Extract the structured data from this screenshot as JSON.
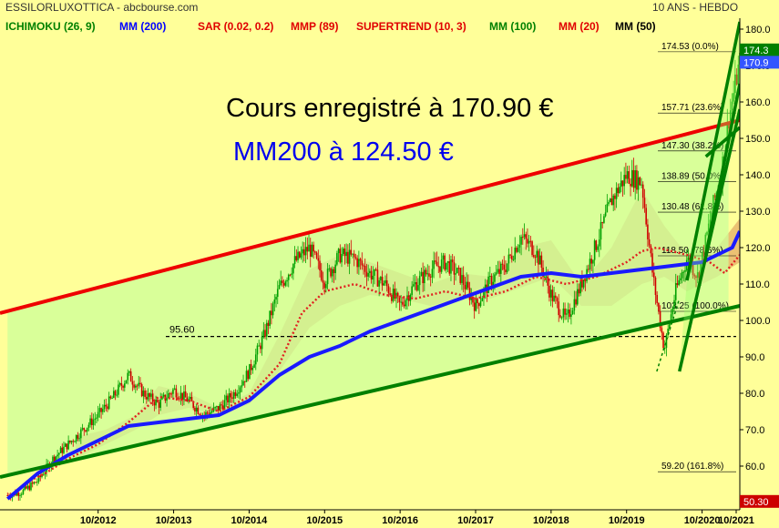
{
  "header": {
    "title": "ESSILORLUXOTTICA - abcbourse.com",
    "period": "10 ANS - HEBDO",
    "legend": [
      {
        "label": "ICHIMOKU (26, 9)",
        "color": "#008000"
      },
      {
        "label": "MM (200)",
        "color": "#0000ff"
      },
      {
        "label": "SAR (0.02, 0.2)",
        "color": "#e00000"
      },
      {
        "label": "MMP (89)",
        "color": "#e00000"
      },
      {
        "label": "SUPERTREND (10, 3)",
        "color": "#e00000"
      },
      {
        "label": "MM (100)",
        "color": "#008000"
      },
      {
        "label": "MM (20)",
        "color": "#e00000"
      },
      {
        "label": "MM (50)",
        "color": "#000000"
      }
    ]
  },
  "annotations": {
    "price_text": "Cours enregistré à 170.90 €",
    "mm200_text": "MM200 à 124.50 €",
    "support_label": "95.60"
  },
  "chart_data": {
    "type": "line",
    "ylim": [
      48,
      183
    ],
    "xlim": [
      2011.5,
      2021.3
    ],
    "yticks": [
      50,
      60,
      70,
      80,
      90,
      100,
      110,
      120,
      130,
      140,
      150,
      160,
      170,
      180
    ],
    "xticks": [
      {
        "x": 2012.8,
        "label": "10/2012"
      },
      {
        "x": 2013.8,
        "label": "10/2013"
      },
      {
        "x": 2014.8,
        "label": "10/2014"
      },
      {
        "x": 2015.8,
        "label": "10/2015"
      },
      {
        "x": 2016.8,
        "label": "10/2016"
      },
      {
        "x": 2017.8,
        "label": "10/2017"
      },
      {
        "x": 2018.8,
        "label": "10/2018"
      },
      {
        "x": 2019.8,
        "label": "10/2019"
      },
      {
        "x": 2020.8,
        "label": "10/2020"
      },
      {
        "x": 2021.8,
        "label": "10/2021"
      }
    ],
    "price_tags": [
      {
        "value": 174.3,
        "label": "174.3",
        "color": "#008000"
      },
      {
        "value": 170.9,
        "label": "170.9",
        "color": "#3355ff"
      },
      {
        "value": 50.3,
        "label": "50.30",
        "color": "#cc0000"
      }
    ],
    "fibonacci": [
      {
        "value": 174.53,
        "label": "174.53  (0.0%)"
      },
      {
        "value": 157.71,
        "label": "157.71  (23.6%)"
      },
      {
        "value": 147.3,
        "label": "147.30  (38.2%)"
      },
      {
        "value": 138.89,
        "label": "138.89  (50.0%)"
      },
      {
        "value": 130.48,
        "label": "130.48  (61.8%)"
      },
      {
        "value": 118.5,
        "label": "118.50  (78.6%)"
      },
      {
        "value": 103.25,
        "label": "103.25  (100.0%)"
      },
      {
        "value": 59.2,
        "label": "59.20  (161.8%)"
      }
    ],
    "support_level": 95.6,
    "close": [
      [
        2011.6,
        52
      ],
      [
        2011.8,
        53
      ],
      [
        2012.0,
        56
      ],
      [
        2012.2,
        62
      ],
      [
        2012.4,
        66
      ],
      [
        2012.6,
        70
      ],
      [
        2012.8,
        74
      ],
      [
        2013.0,
        79
      ],
      [
        2013.2,
        85
      ],
      [
        2013.4,
        80
      ],
      [
        2013.6,
        77
      ],
      [
        2013.8,
        81
      ],
      [
        2014.0,
        78
      ],
      [
        2014.2,
        74
      ],
      [
        2014.4,
        76
      ],
      [
        2014.6,
        80
      ],
      [
        2014.8,
        86
      ],
      [
        2015.0,
        96
      ],
      [
        2015.2,
        109
      ],
      [
        2015.4,
        116
      ],
      [
        2015.6,
        120
      ],
      [
        2015.8,
        111
      ],
      [
        2016.0,
        118
      ],
      [
        2016.2,
        117
      ],
      [
        2016.4,
        113
      ],
      [
        2016.6,
        110
      ],
      [
        2016.8,
        104
      ],
      [
        2017.0,
        110
      ],
      [
        2017.2,
        114
      ],
      [
        2017.4,
        116
      ],
      [
        2017.6,
        112
      ],
      [
        2017.8,
        104
      ],
      [
        2018.0,
        111
      ],
      [
        2018.2,
        115
      ],
      [
        2018.4,
        123
      ],
      [
        2018.6,
        119
      ],
      [
        2018.8,
        107
      ],
      [
        2019.0,
        100
      ],
      [
        2019.2,
        110
      ],
      [
        2019.4,
        121
      ],
      [
        2019.6,
        133
      ],
      [
        2019.8,
        140
      ],
      [
        2020.0,
        138
      ],
      [
        2020.15,
        112
      ],
      [
        2020.3,
        92
      ],
      [
        2020.45,
        108
      ],
      [
        2020.6,
        117
      ],
      [
        2020.75,
        112
      ],
      [
        2020.85,
        122
      ],
      [
        2020.95,
        132
      ],
      [
        2021.05,
        140
      ],
      [
        2021.15,
        155
      ],
      [
        2021.25,
        166
      ],
      [
        2021.3,
        171
      ]
    ],
    "mm200": [
      [
        2011.6,
        51
      ],
      [
        2012.0,
        58
      ],
      [
        2012.4,
        63
      ],
      [
        2012.8,
        67
      ],
      [
        2013.2,
        71
      ],
      [
        2013.6,
        72
      ],
      [
        2014.0,
        73
      ],
      [
        2014.4,
        74
      ],
      [
        2014.8,
        78
      ],
      [
        2015.2,
        85
      ],
      [
        2015.6,
        90
      ],
      [
        2016.0,
        93
      ],
      [
        2016.4,
        97
      ],
      [
        2016.8,
        100
      ],
      [
        2017.2,
        103
      ],
      [
        2017.6,
        106
      ],
      [
        2018.0,
        109
      ],
      [
        2018.4,
        112
      ],
      [
        2018.8,
        113
      ],
      [
        2019.2,
        112
      ],
      [
        2019.6,
        113
      ],
      [
        2020.0,
        114
      ],
      [
        2020.4,
        115
      ],
      [
        2020.8,
        116
      ],
      [
        2021.0,
        118
      ],
      [
        2021.2,
        120
      ],
      [
        2021.3,
        124.5
      ]
    ],
    "sar": [
      [
        2011.9,
        56
      ],
      [
        2012.1,
        58
      ],
      [
        2012.4,
        62
      ],
      [
        2012.8,
        66
      ],
      [
        2013.2,
        72
      ],
      [
        2013.6,
        79
      ],
      [
        2014.0,
        78
      ],
      [
        2014.4,
        75
      ],
      [
        2014.8,
        79
      ],
      [
        2015.2,
        88
      ],
      [
        2015.5,
        102
      ],
      [
        2015.8,
        108
      ],
      [
        2016.2,
        110
      ],
      [
        2016.6,
        107
      ],
      [
        2017.0,
        106
      ],
      [
        2017.4,
        108
      ],
      [
        2017.8,
        106
      ],
      [
        2018.2,
        108
      ],
      [
        2018.6,
        112
      ],
      [
        2019.0,
        110
      ],
      [
        2019.4,
        112
      ],
      [
        2019.8,
        116
      ],
      [
        2020.0,
        119
      ],
      [
        2020.2,
        120
      ],
      [
        2020.6,
        118
      ],
      [
        2020.9,
        116
      ],
      [
        2021.1,
        113
      ],
      [
        2021.3,
        118
      ]
    ],
    "cloud_upper": [
      [
        2012.5,
        68
      ],
      [
        2012.9,
        70
      ],
      [
        2013.3,
        74
      ],
      [
        2013.6,
        82
      ],
      [
        2014.0,
        80
      ],
      [
        2014.4,
        76
      ],
      [
        2014.8,
        80
      ],
      [
        2015.2,
        96
      ],
      [
        2015.6,
        114
      ],
      [
        2016.0,
        118
      ],
      [
        2016.4,
        116
      ],
      [
        2016.8,
        113
      ],
      [
        2017.2,
        110
      ],
      [
        2017.6,
        113
      ],
      [
        2018.0,
        112
      ],
      [
        2018.4,
        120
      ],
      [
        2018.8,
        122
      ],
      [
        2019.2,
        110
      ],
      [
        2019.6,
        120
      ],
      [
        2020.0,
        136
      ],
      [
        2020.3,
        126
      ],
      [
        2020.6,
        118
      ],
      [
        2021.0,
        120
      ],
      [
        2021.3,
        128
      ]
    ],
    "cloud_lower": [
      [
        2012.5,
        62
      ],
      [
        2012.9,
        66
      ],
      [
        2013.3,
        70
      ],
      [
        2013.6,
        74
      ],
      [
        2014.0,
        76
      ],
      [
        2014.4,
        74
      ],
      [
        2014.8,
        77
      ],
      [
        2015.2,
        86
      ],
      [
        2015.6,
        98
      ],
      [
        2016.0,
        104
      ],
      [
        2016.4,
        107
      ],
      [
        2016.8,
        106
      ],
      [
        2017.2,
        104
      ],
      [
        2017.6,
        106
      ],
      [
        2018.0,
        106
      ],
      [
        2018.4,
        109
      ],
      [
        2018.8,
        112
      ],
      [
        2019.2,
        104
      ],
      [
        2019.6,
        104
      ],
      [
        2020.0,
        110
      ],
      [
        2020.3,
        112
      ],
      [
        2020.6,
        108
      ],
      [
        2021.0,
        112
      ],
      [
        2021.3,
        116
      ]
    ],
    "channel_upper": [
      [
        2011.5,
        102
      ],
      [
        2021.3,
        155
      ]
    ],
    "channel_lower": [
      [
        2011.5,
        57
      ],
      [
        2021.3,
        104
      ]
    ],
    "recent_trend_left": [
      [
        2020.6,
        111
      ],
      [
        2021.3,
        182
      ]
    ],
    "recent_trend_right": [
      [
        2020.5,
        86
      ],
      [
        2021.3,
        158
      ]
    ],
    "recent_trend_inner": [
      [
        2020.85,
        118
      ],
      [
        2021.3,
        165
      ]
    ],
    "trend_lower_short": [
      [
        2020.85,
        145
      ],
      [
        2021.3,
        153
      ]
    ],
    "grid": false,
    "legend_position": "top-left"
  }
}
